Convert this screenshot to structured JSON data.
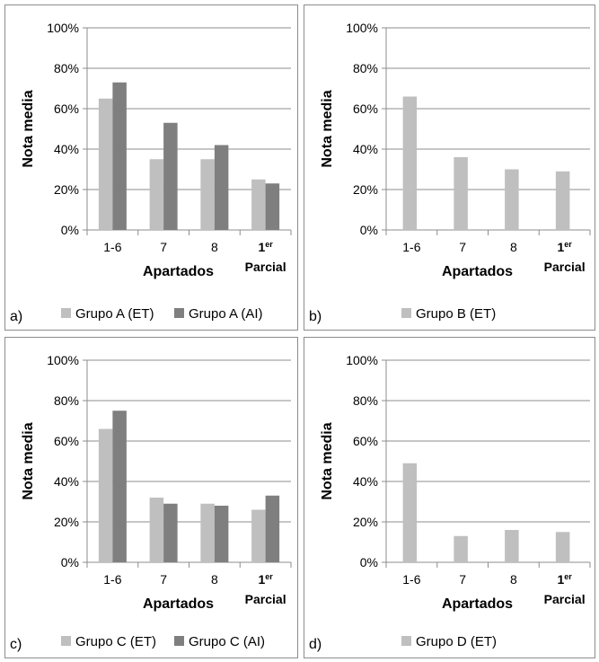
{
  "chart_data": [
    {
      "type": "bar",
      "panel_label": "a)",
      "categories": [
        "1-6",
        "7",
        "8",
        "1er Parcial"
      ],
      "xlabel": "Apartados",
      "ylabel": "Nota media",
      "ylim": [
        0,
        100
      ],
      "yticks": [
        "0%",
        "20%",
        "40%",
        "60%",
        "80%",
        "100%"
      ],
      "grid": true,
      "legend_position": "bottom",
      "series": [
        {
          "name": "Grupo A (ET)",
          "values": [
            65,
            35,
            35,
            25
          ],
          "color": "#bfbfbf"
        },
        {
          "name": "Grupo A (AI)",
          "values": [
            73,
            53,
            42,
            23
          ],
          "color": "#7f7f7f"
        }
      ]
    },
    {
      "type": "bar",
      "panel_label": "b)",
      "categories": [
        "1-6",
        "7",
        "8",
        "1er Parcial"
      ],
      "xlabel": "Apartados",
      "ylabel": "Nota media",
      "ylim": [
        0,
        100
      ],
      "yticks": [
        "0%",
        "20%",
        "40%",
        "60%",
        "80%",
        "100%"
      ],
      "grid": true,
      "legend_position": "bottom",
      "series": [
        {
          "name": "Grupo B (ET)",
          "values": [
            66,
            36,
            30,
            29
          ],
          "color": "#bfbfbf"
        }
      ]
    },
    {
      "type": "bar",
      "panel_label": "c)",
      "categories": [
        "1-6",
        "7",
        "8",
        "1er Parcial"
      ],
      "xlabel": "Apartados",
      "ylabel": "Nota media",
      "ylim": [
        0,
        100
      ],
      "yticks": [
        "0%",
        "20%",
        "40%",
        "60%",
        "80%",
        "100%"
      ],
      "grid": true,
      "legend_position": "bottom",
      "series": [
        {
          "name": "Grupo C (ET)",
          "values": [
            66,
            32,
            29,
            26
          ],
          "color": "#bfbfbf"
        },
        {
          "name": "Grupo C (AI)",
          "values": [
            75,
            29,
            28,
            33
          ],
          "color": "#7f7f7f"
        }
      ]
    },
    {
      "type": "bar",
      "panel_label": "d)",
      "categories": [
        "1-6",
        "7",
        "8",
        "1er Parcial"
      ],
      "xlabel": "Apartados",
      "ylabel": "Nota media",
      "ylim": [
        0,
        100
      ],
      "yticks": [
        "0%",
        "20%",
        "40%",
        "60%",
        "80%",
        "100%"
      ],
      "grid": true,
      "legend_position": "bottom",
      "series": [
        {
          "name": "Grupo D (ET)",
          "values": [
            49,
            13,
            16,
            15
          ],
          "color": "#bfbfbf"
        }
      ]
    }
  ]
}
